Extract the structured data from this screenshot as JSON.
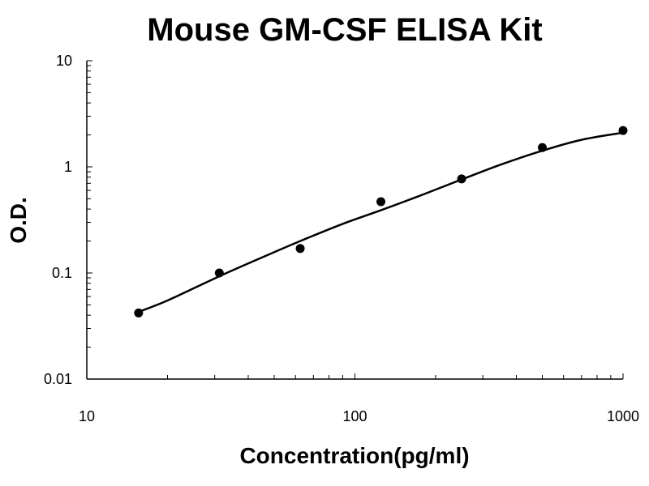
{
  "chart_data": {
    "type": "scatter",
    "title": "Mouse GM-CSF ELISA Kit",
    "xlabel": "Concentration(pg/ml)",
    "ylabel": "O.D.",
    "x_scale": "log",
    "y_scale": "log",
    "xlim": [
      10,
      1000
    ],
    "ylim": [
      0.01,
      10
    ],
    "x_ticks": [
      10,
      100,
      1000
    ],
    "x_tick_labels": [
      "10",
      "100",
      "1000"
    ],
    "y_ticks": [
      0.01,
      0.1,
      1,
      10
    ],
    "y_tick_labels": [
      "0.01",
      "0.1",
      "1",
      "10"
    ],
    "grid": false,
    "series": [
      {
        "points": [
          {
            "x": 15.6,
            "y": 0.042
          },
          {
            "x": 31.2,
            "y": 0.1
          },
          {
            "x": 62.5,
            "y": 0.17
          },
          {
            "x": 125,
            "y": 0.47
          },
          {
            "x": 250,
            "y": 0.77
          },
          {
            "x": 500,
            "y": 1.52
          },
          {
            "x": 1000,
            "y": 2.2
          }
        ]
      }
    ],
    "fit_curve": [
      {
        "x": 15.6,
        "y": 0.043
      },
      {
        "x": 20,
        "y": 0.055
      },
      {
        "x": 31.2,
        "y": 0.093
      },
      {
        "x": 45,
        "y": 0.14
      },
      {
        "x": 62.5,
        "y": 0.2
      },
      {
        "x": 90,
        "y": 0.29
      },
      {
        "x": 125,
        "y": 0.39
      },
      {
        "x": 180,
        "y": 0.55
      },
      {
        "x": 250,
        "y": 0.76
      },
      {
        "x": 350,
        "y": 1.05
      },
      {
        "x": 500,
        "y": 1.42
      },
      {
        "x": 700,
        "y": 1.8
      },
      {
        "x": 1000,
        "y": 2.1
      }
    ],
    "colors": {
      "points": "#000000",
      "curve": "#000000",
      "axes": "#000000"
    }
  }
}
